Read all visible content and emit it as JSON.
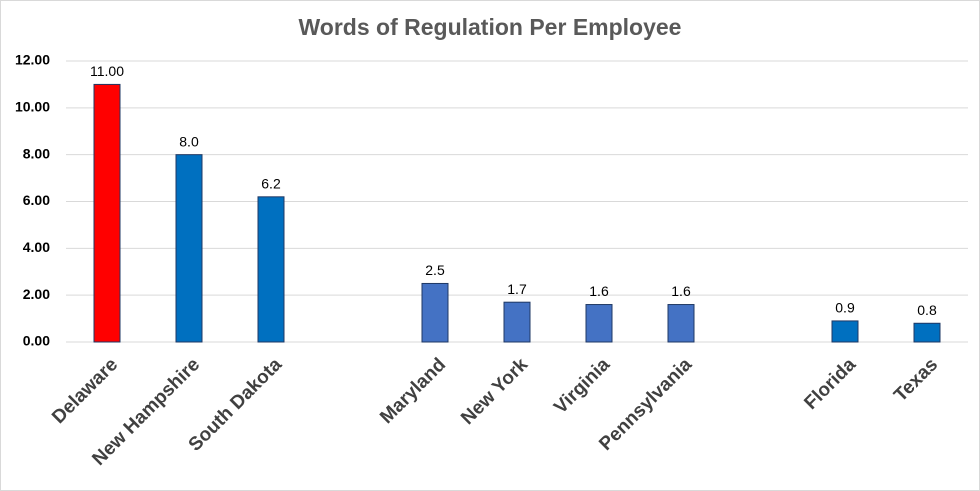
{
  "chart_data": {
    "type": "bar",
    "title": "Words of Regulation Per Employee",
    "categories": [
      "Delaware",
      "New Hampshire",
      "South Dakota",
      null,
      "Maryland",
      "New York",
      "Virginia",
      "Pennsylvania",
      null,
      "Florida",
      "Texas"
    ],
    "values": [
      11,
      8,
      6.2,
      null,
      2.5,
      1.7,
      1.6,
      1.6,
      null,
      0.9,
      0.8
    ],
    "value_labels": [
      "11.00",
      "8.0",
      "6.2",
      null,
      "2.5",
      "1.7",
      "1.6",
      "1.6",
      null,
      "0.9",
      "0.8"
    ],
    "colors": [
      "#ff0000",
      "#0070c0",
      "#0070c0",
      null,
      "#4472c4",
      "#4472c4",
      "#4472c4",
      "#4472c4",
      null,
      "#0070c0",
      "#0070c0"
    ],
    "ylim": [
      0,
      12
    ],
    "yticks": [
      {
        "value": 0,
        "label": "0.00"
      },
      {
        "value": 2,
        "label": "2.00"
      },
      {
        "value": 4,
        "label": "4.00"
      },
      {
        "value": 6,
        "label": "6.00"
      },
      {
        "value": 8,
        "label": "8.00"
      },
      {
        "value": 10,
        "label": "10.00"
      },
      {
        "value": 12,
        "label": "12.00"
      }
    ],
    "grid": true
  }
}
